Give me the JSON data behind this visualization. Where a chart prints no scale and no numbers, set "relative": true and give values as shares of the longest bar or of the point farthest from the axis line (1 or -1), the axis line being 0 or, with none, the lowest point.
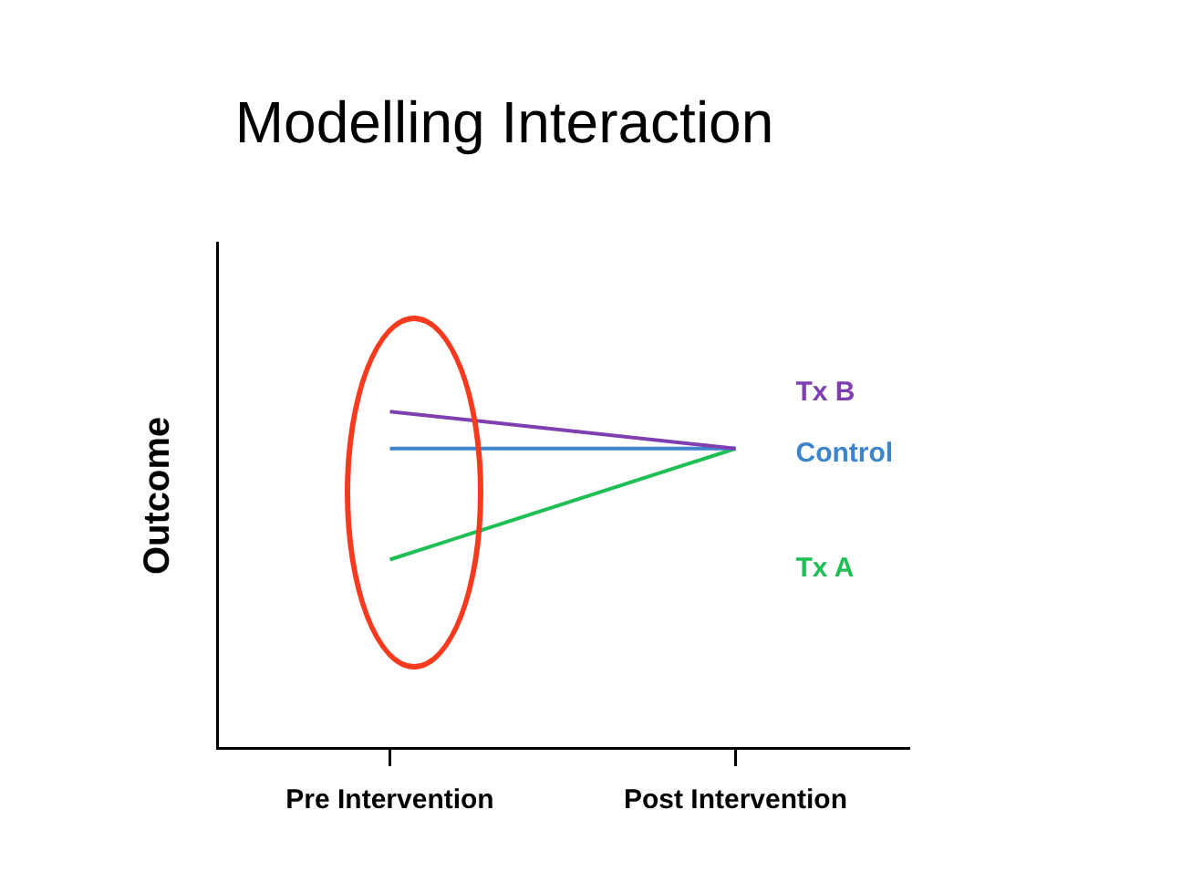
{
  "chart_data": {
    "type": "line",
    "title": "Modelling Interaction",
    "ylabel": "Outcome",
    "categories": [
      "Pre Intervention",
      "Post Intervention"
    ],
    "relative": true,
    "legend": false,
    "grid": false,
    "marker": "none",
    "series": [
      {
        "name": "Tx B",
        "color": "#7f3fb0",
        "values": [
          1,
          0.89
        ]
      },
      {
        "name": "Control",
        "color": "#3c85cc",
        "values": [
          0.89,
          0.89
        ]
      },
      {
        "name": "Tx A",
        "color": "#1fbf55",
        "values": [
          0.56,
          0.89
        ]
      }
    ]
  }
}
